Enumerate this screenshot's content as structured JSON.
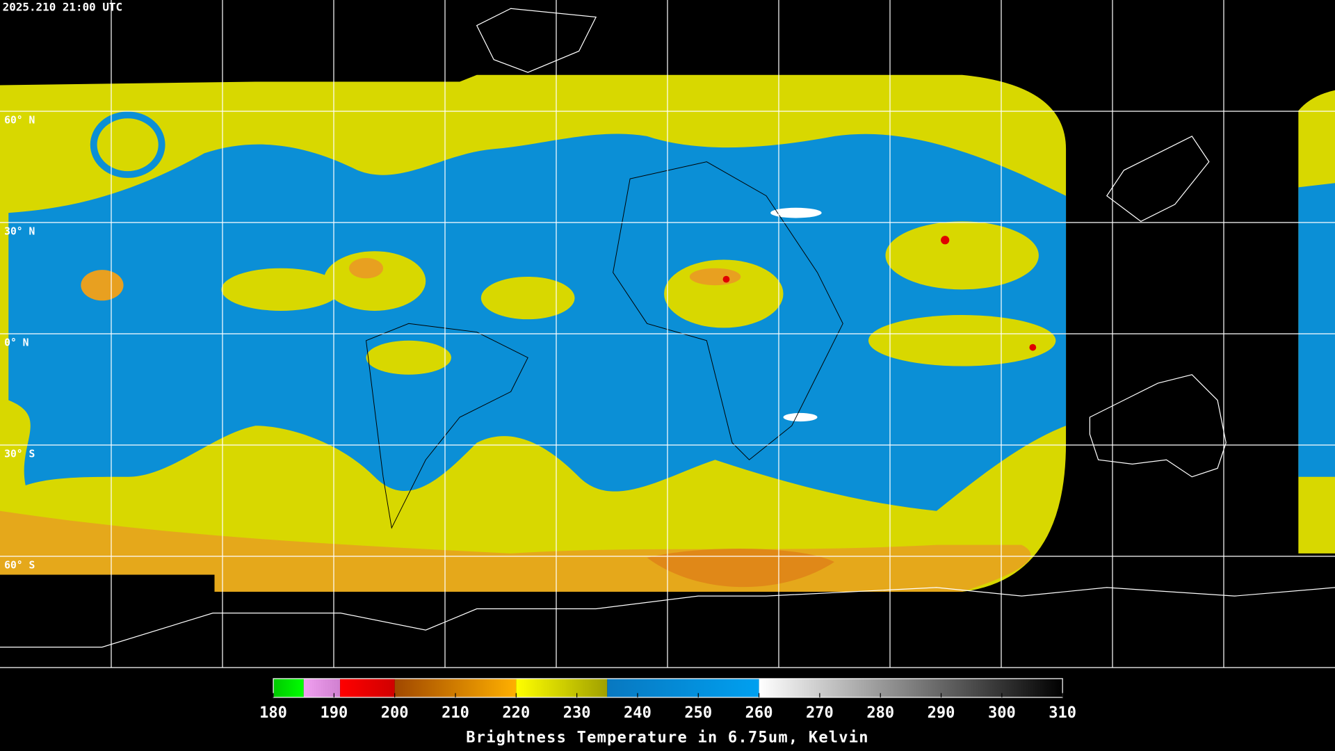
{
  "header": {
    "timestamp": "2025.210 21:00 UTC"
  },
  "map": {
    "lat_labels": [
      "60° N",
      "30° N",
      "0° N",
      "30° S",
      "60° S"
    ]
  },
  "colorbar": {
    "title": "Brightness Temperature in 6.75um, Kelvin",
    "range": [
      180,
      310
    ],
    "ticks": [
      180,
      190,
      200,
      210,
      220,
      230,
      240,
      250,
      260,
      270,
      280,
      290,
      300,
      310
    ],
    "segments": [
      {
        "from": 180,
        "to": 185,
        "colors": [
          "#00c800",
          "#00ff00"
        ]
      },
      {
        "from": 185,
        "to": 191,
        "colors": [
          "#f0a0f0",
          "#d080d0"
        ]
      },
      {
        "from": 191,
        "to": 200,
        "colors": [
          "#ff0000",
          "#d00000"
        ]
      },
      {
        "from": 200,
        "to": 220,
        "colors": [
          "#a04800",
          "#ffb000"
        ]
      },
      {
        "from": 220,
        "to": 235,
        "colors": [
          "#ffff00",
          "#a0a000"
        ]
      },
      {
        "from": 235,
        "to": 260,
        "colors": [
          "#0878c0",
          "#00a0f0"
        ]
      },
      {
        "from": 260,
        "to": 310,
        "colors": [
          "#ffffff",
          "#000000"
        ]
      }
    ]
  }
}
